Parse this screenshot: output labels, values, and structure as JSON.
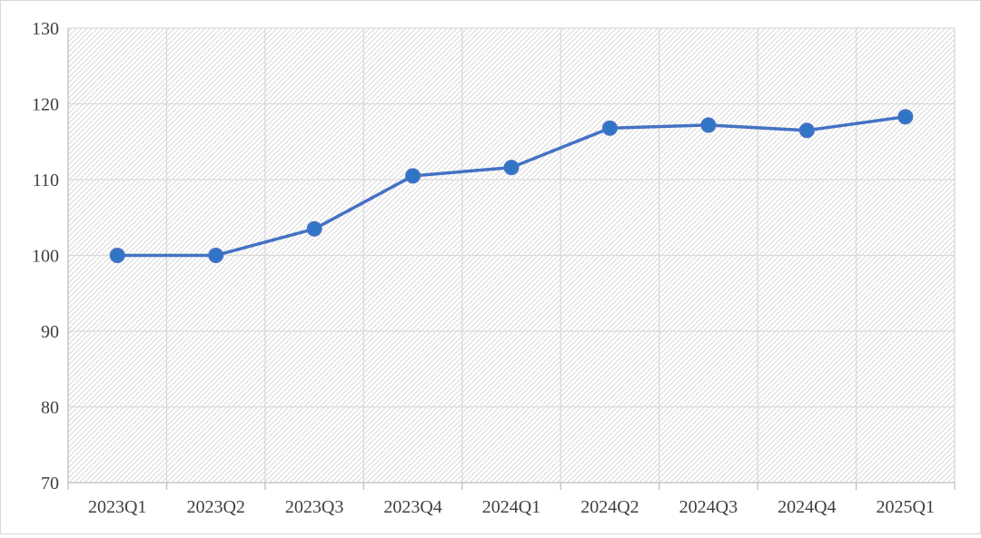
{
  "chart_data": {
    "type": "line",
    "categories": [
      "2023Q1",
      "2023Q2",
      "2023Q3",
      "2023Q4",
      "2024Q1",
      "2024Q2",
      "2024Q3",
      "2024Q4",
      "2025Q1"
    ],
    "series": [
      {
        "values": [
          100.0,
          100.0,
          103.5,
          110.5,
          111.6,
          116.8,
          117.2,
          116.5,
          118.3
        ]
      }
    ],
    "ylim": [
      70,
      130
    ],
    "yticks": [
      70,
      80,
      90,
      100,
      110,
      120,
      130
    ],
    "grid": true,
    "legend": "none",
    "title": "",
    "xlabel": "",
    "ylabel": ""
  },
  "colors": {
    "line": "#4472c4",
    "marker_fill": "#2e75c6",
    "grid": "#d9d9d9",
    "hatch": "#c8c8c8",
    "axis": "#bfbfbf"
  }
}
